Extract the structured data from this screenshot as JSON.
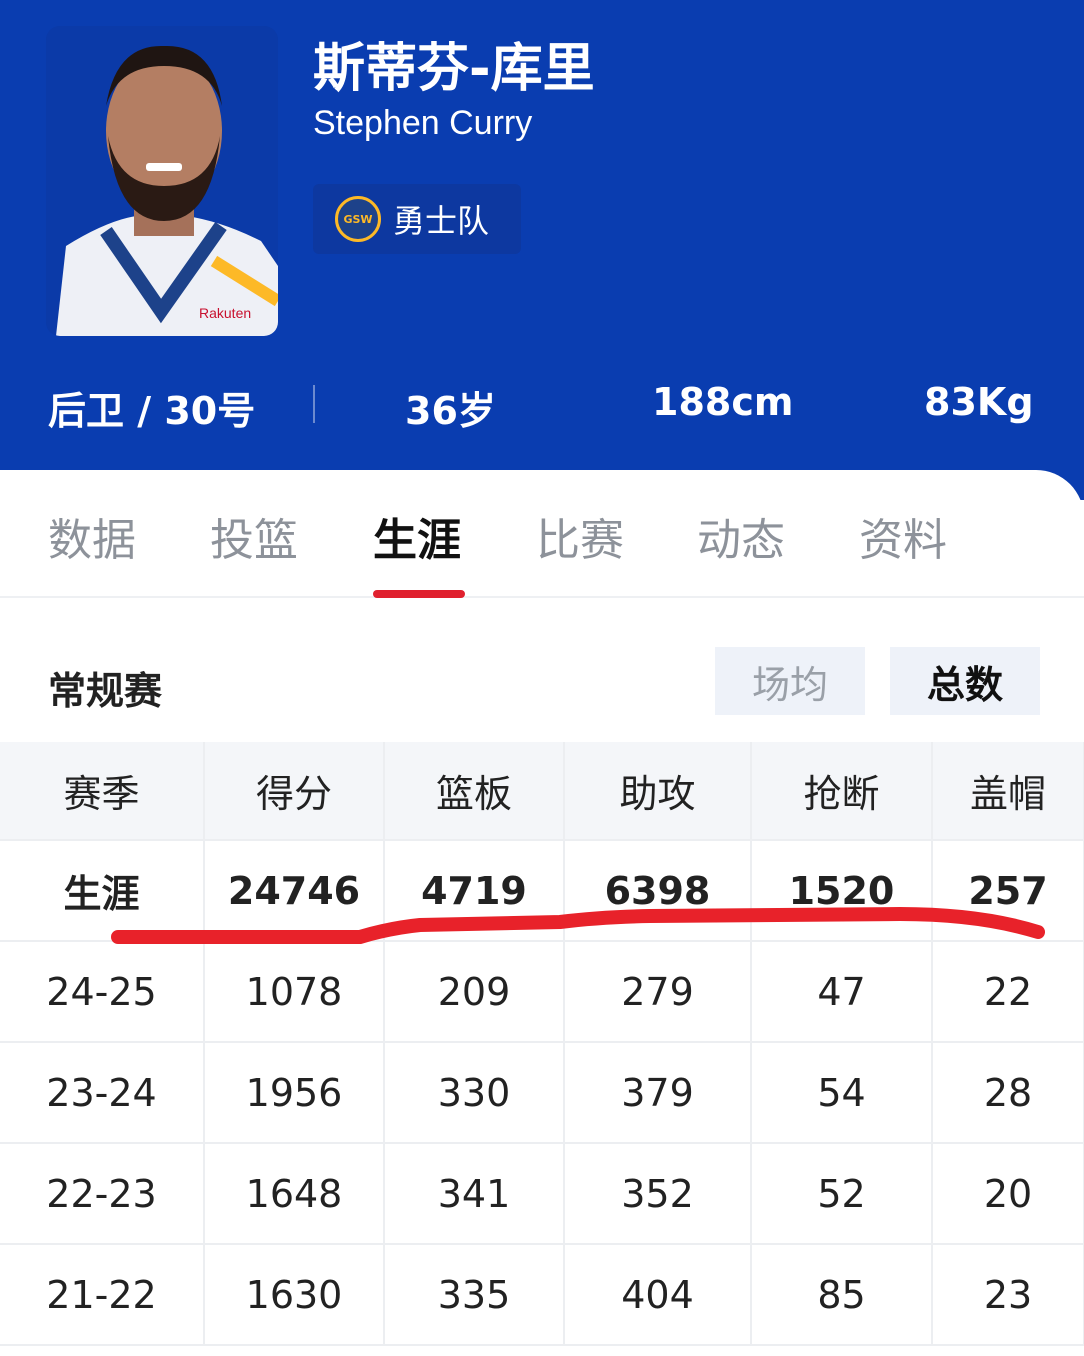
{
  "player": {
    "name_cn": "斯蒂芬-库里",
    "name_en": "Stephen Curry",
    "team": "勇士队",
    "team_logo_text": "GSW",
    "position_number": "后卫 / 30号",
    "age": "36岁",
    "height": "188cm",
    "weight": "83Kg",
    "jersey_text": "Rakuten"
  },
  "tabs": [
    {
      "label": "数据"
    },
    {
      "label": "投篮"
    },
    {
      "label": "生涯",
      "active": true
    },
    {
      "label": "比赛"
    },
    {
      "label": "动态"
    },
    {
      "label": "资料"
    }
  ],
  "section": {
    "title": "常规赛",
    "toggle": [
      "场均",
      "总数"
    ],
    "selected": "总数"
  },
  "table": {
    "headers": [
      "赛季",
      "得分",
      "篮板",
      "助攻",
      "抢断",
      "盖帽"
    ],
    "rows": [
      [
        "生涯",
        "24746",
        "4719",
        "6398",
        "1520",
        "257"
      ],
      [
        "24-25",
        "1078",
        "209",
        "279",
        "47",
        "22"
      ],
      [
        "23-24",
        "1956",
        "330",
        "379",
        "54",
        "28"
      ],
      [
        "22-23",
        "1648",
        "341",
        "352",
        "52",
        "20"
      ],
      [
        "21-22",
        "1630",
        "335",
        "404",
        "85",
        "23"
      ]
    ]
  },
  "colors": {
    "hero_bg": "#0a3db0",
    "accent": "#e0202e",
    "annotation": "#e8222a"
  }
}
